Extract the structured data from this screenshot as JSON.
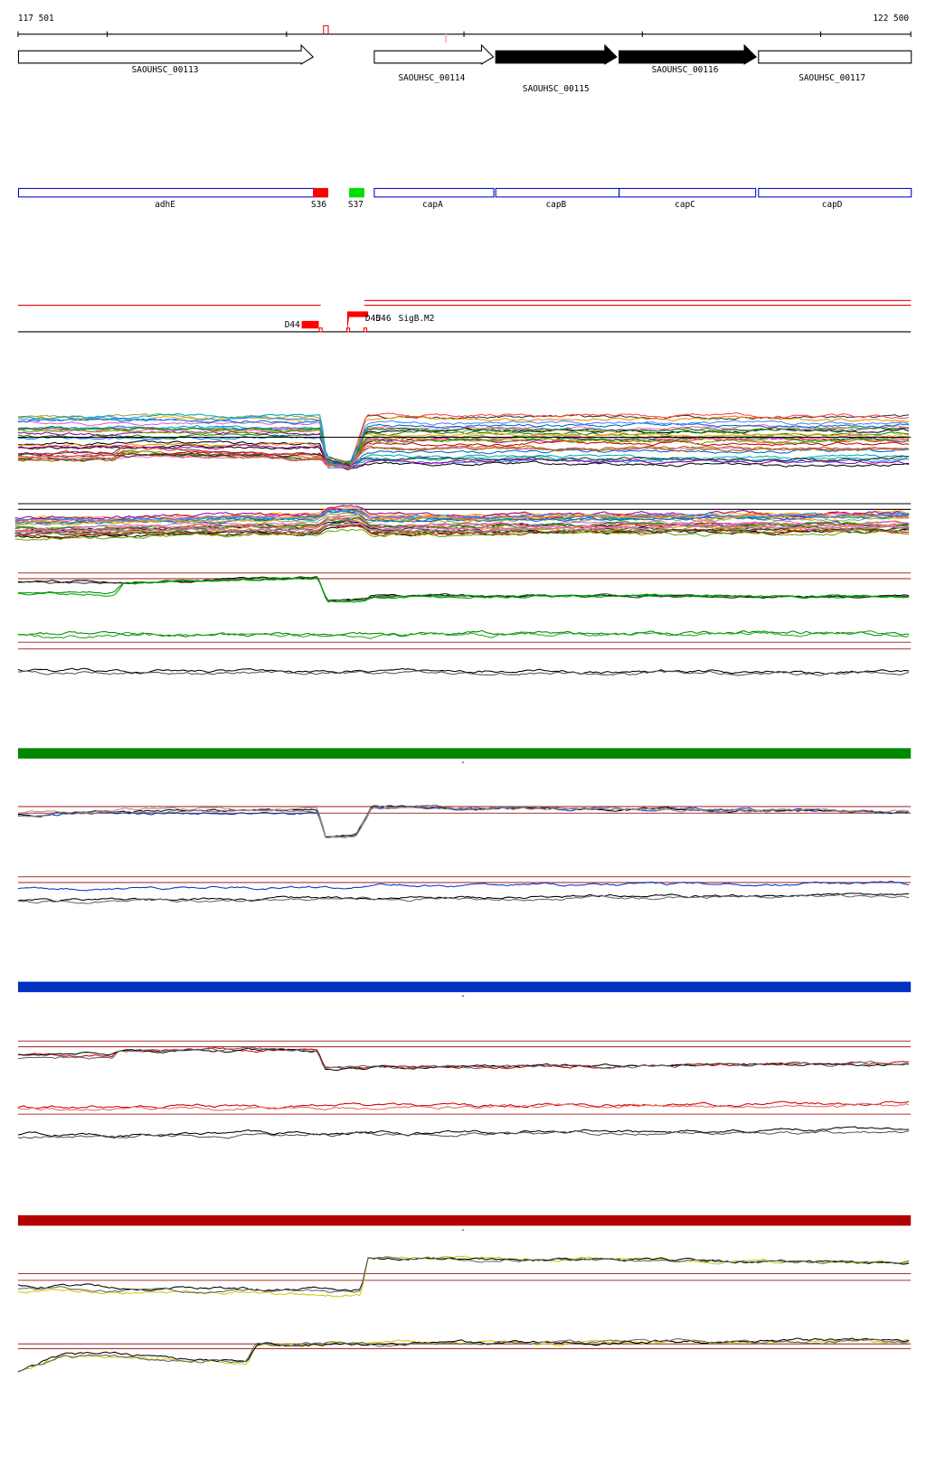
{
  "ruler": {
    "start": "117 501",
    "end": "122 500"
  },
  "genes": [
    "SAOUHSC_00113",
    "SAOUHSC_00114",
    "SAOUHSC_00115",
    "SAOUHSC_00116",
    "SAOUHSC_00117"
  ],
  "annotations": [
    "adhE",
    "S36",
    "S37",
    "capA",
    "capB",
    "capC",
    "capD"
  ],
  "features": [
    "D44",
    "D45",
    "U46",
    "SigB.M2"
  ],
  "separators": [
    "-",
    "-",
    "-"
  ]
}
